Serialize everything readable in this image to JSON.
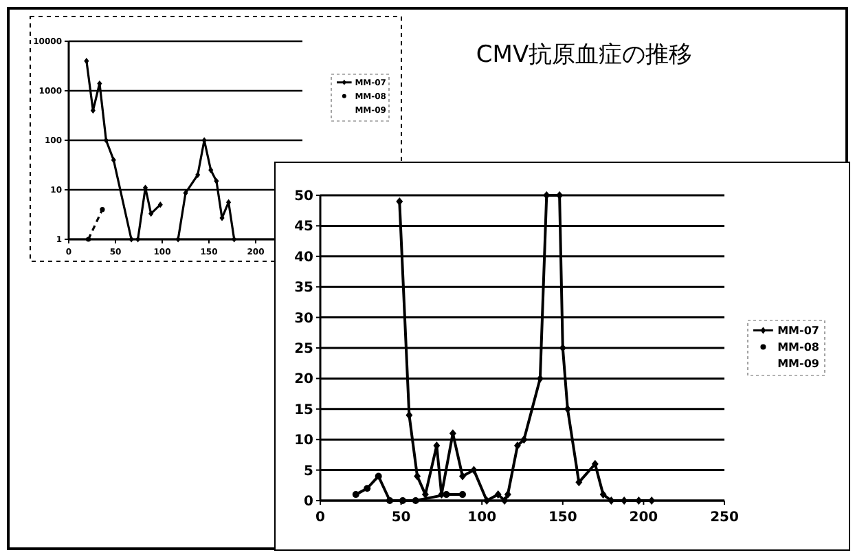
{
  "chart_data": [
    {
      "type": "line",
      "log": "y",
      "xlim": [
        0,
        250
      ],
      "ylim": [
        1,
        10000
      ],
      "xticks": [
        0,
        50,
        100,
        150,
        200
      ],
      "yticks": [
        1,
        10,
        100,
        1000,
        10000
      ],
      "grid": "y",
      "legend": "right",
      "series": [
        {
          "name": "MM-07",
          "color": "#000000",
          "marker": "diamond",
          "x": [
            19,
            26,
            33,
            40,
            48,
            67,
            70,
            74,
            82,
            88,
            98,
            107,
            117,
            125,
            138,
            145,
            152,
            158,
            164,
            171,
            177
          ],
          "values": [
            4000,
            400,
            1400,
            100,
            40,
            1,
            null,
            1,
            11,
            3.3,
            5,
            null,
            1,
            8.6,
            20,
            100,
            25,
            15,
            2.7,
            5.6,
            1
          ]
        },
        {
          "name": "MM-08",
          "color": "#000000",
          "marker": "circle",
          "line_style": "dashed",
          "x": [
            21,
            36
          ],
          "values": [
            1,
            4
          ]
        },
        {
          "name": "MM-09",
          "color": "#000000",
          "marker": "none"
        }
      ]
    },
    {
      "type": "line",
      "title": "CMV抗原血症の推移",
      "xlim": [
        0,
        250
      ],
      "ylim": [
        0,
        50
      ],
      "xticks": [
        0,
        50,
        100,
        150,
        200,
        250
      ],
      "yticks": [
        0,
        5,
        10,
        15,
        20,
        25,
        30,
        35,
        40,
        45,
        50
      ],
      "grid": "y",
      "legend": "right",
      "series": [
        {
          "name": "MM-07",
          "color": "#000000",
          "marker": "diamond",
          "x": [
            49,
            55,
            60,
            65,
            72,
            75,
            82,
            88,
            95,
            103,
            110,
            114,
            116,
            122,
            126,
            136,
            140,
            148,
            150,
            153,
            160,
            170,
            175,
            180,
            188,
            197,
            205
          ],
          "values": [
            49,
            14,
            4,
            1,
            9,
            1,
            11,
            4,
            5,
            0,
            1,
            0,
            1,
            9,
            10,
            20,
            50,
            50,
            25,
            15,
            3,
            6,
            1,
            0,
            0,
            0,
            0
          ]
        },
        {
          "name": "MM-08",
          "color": "#000000",
          "marker": "circle",
          "x": [
            22,
            29,
            36,
            43,
            51,
            59,
            78,
            88
          ],
          "values": [
            1,
            2,
            4,
            0,
            0,
            0,
            1,
            1
          ]
        },
        {
          "name": "MM-09",
          "color": "#000000",
          "marker": "none"
        }
      ]
    }
  ]
}
